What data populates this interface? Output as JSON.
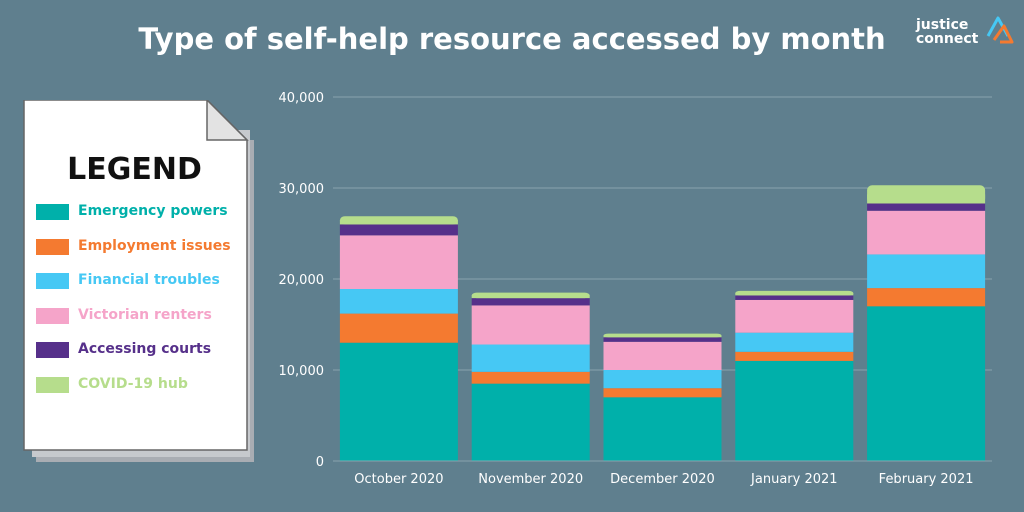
{
  "colors": {
    "background": "#5f7f8e",
    "emergency": "#00b0aa",
    "employment": "#f47a30",
    "financial": "#46c8f4",
    "renters": "#f5a4c9",
    "courts": "#56308a",
    "covid": "#b6dd8c"
  },
  "logo": {
    "line1": "justice",
    "line2": "connect",
    "icon": "triangle-logo-icon"
  },
  "legend": {
    "title": "LEGEND",
    "icon": "document-page-icon"
  },
  "chart_data": {
    "type": "bar",
    "stacked": true,
    "title": "Type of self-help resource accessed by month",
    "xlabel": "",
    "ylabel": "",
    "ylim": [
      0,
      40000
    ],
    "yticks": [
      "0",
      "10,000",
      "20,000",
      "30,000",
      "40,000"
    ],
    "ytick_values": [
      0,
      10000,
      20000,
      30000,
      40000
    ],
    "grid": true,
    "legend_position": "left",
    "categories": [
      "October 2020",
      "November 2020",
      "December 2020",
      "January 2021",
      "February 2021"
    ],
    "series": [
      {
        "name": "Emergency powers",
        "color": "#00b0aa",
        "values": [
          13000,
          8500,
          7000,
          11000,
          17000
        ]
      },
      {
        "name": "Employment issues",
        "color": "#f47a30",
        "values": [
          3200,
          1300,
          1000,
          1000,
          2000
        ]
      },
      {
        "name": "Financial troubles",
        "color": "#46c8f4",
        "values": [
          2700,
          3000,
          2000,
          2100,
          3700
        ]
      },
      {
        "name": "Victorian renters",
        "color": "#f5a4c9",
        "values": [
          5900,
          4300,
          3100,
          3600,
          4800
        ]
      },
      {
        "name": "Accessing courts",
        "color": "#56308a",
        "values": [
          1200,
          800,
          500,
          500,
          800
        ]
      },
      {
        "name": "COVID-19 hub",
        "color": "#b6dd8c",
        "values": [
          900,
          600,
          400,
          500,
          2000
        ]
      }
    ]
  }
}
